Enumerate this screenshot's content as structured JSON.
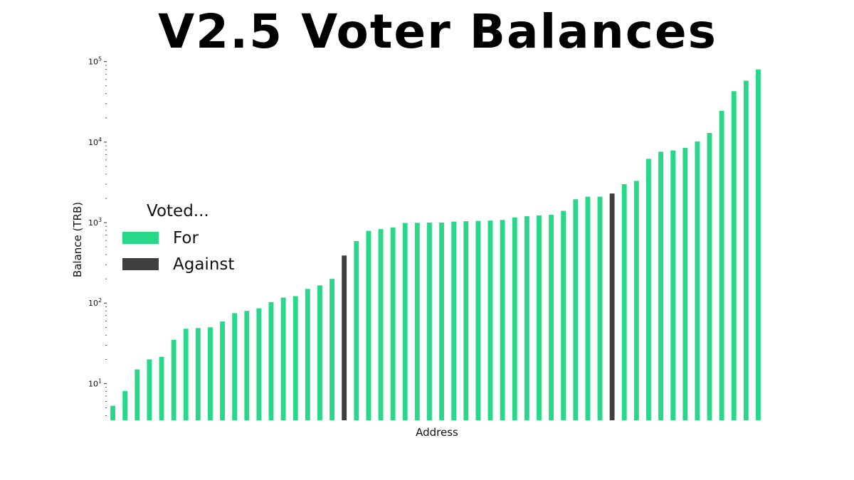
{
  "chart_data": {
    "type": "bar",
    "title": "V2.5 Voter Balances",
    "xlabel": "Address",
    "ylabel": "Balance (TRB)",
    "yscale": "log",
    "ylim": [
      3.5,
      110000
    ],
    "yticks": [
      {
        "base": "10",
        "exp": "1",
        "value": 10
      },
      {
        "base": "10",
        "exp": "2",
        "value": 100
      },
      {
        "base": "10",
        "exp": "3",
        "value": 1000
      },
      {
        "base": "10",
        "exp": "4",
        "value": 10000
      },
      {
        "base": "10",
        "exp": "5",
        "value": 100000
      }
    ],
    "grid": false,
    "colors": {
      "For": "#28d787",
      "Against": "#3f3f3f"
    },
    "legend": {
      "title": "Voted...",
      "placement": "center-left",
      "entries": [
        {
          "label": "For",
          "color": "#28d787"
        },
        {
          "label": "Against",
          "color": "#3f3f3f"
        }
      ]
    },
    "values": [
      5.3,
      8.1,
      15,
      20,
      21.5,
      35,
      48,
      49,
      50,
      59,
      75,
      80,
      86,
      103,
      117,
      122,
      150,
      166,
      200,
      390,
      590,
      790,
      830,
      870,
      990,
      995,
      1000,
      1000,
      1030,
      1040,
      1050,
      1060,
      1080,
      1160,
      1200,
      1230,
      1250,
      1400,
      1950,
      2100,
      2100,
      2300,
      3000,
      3300,
      6200,
      7600,
      7900,
      8500,
      10200,
      13000,
      24500,
      43000,
      58000,
      80000
    ],
    "votes": [
      "For",
      "For",
      "For",
      "For",
      "For",
      "For",
      "For",
      "For",
      "For",
      "For",
      "For",
      "For",
      "For",
      "For",
      "For",
      "For",
      "For",
      "For",
      "For",
      "Against",
      "For",
      "For",
      "For",
      "For",
      "For",
      "For",
      "For",
      "For",
      "For",
      "For",
      "For",
      "For",
      "For",
      "For",
      "For",
      "For",
      "For",
      "For",
      "For",
      "For",
      "For",
      "Against",
      "For",
      "For",
      "For",
      "For",
      "For",
      "For",
      "For",
      "For",
      "For",
      "For",
      "For",
      "For"
    ]
  }
}
